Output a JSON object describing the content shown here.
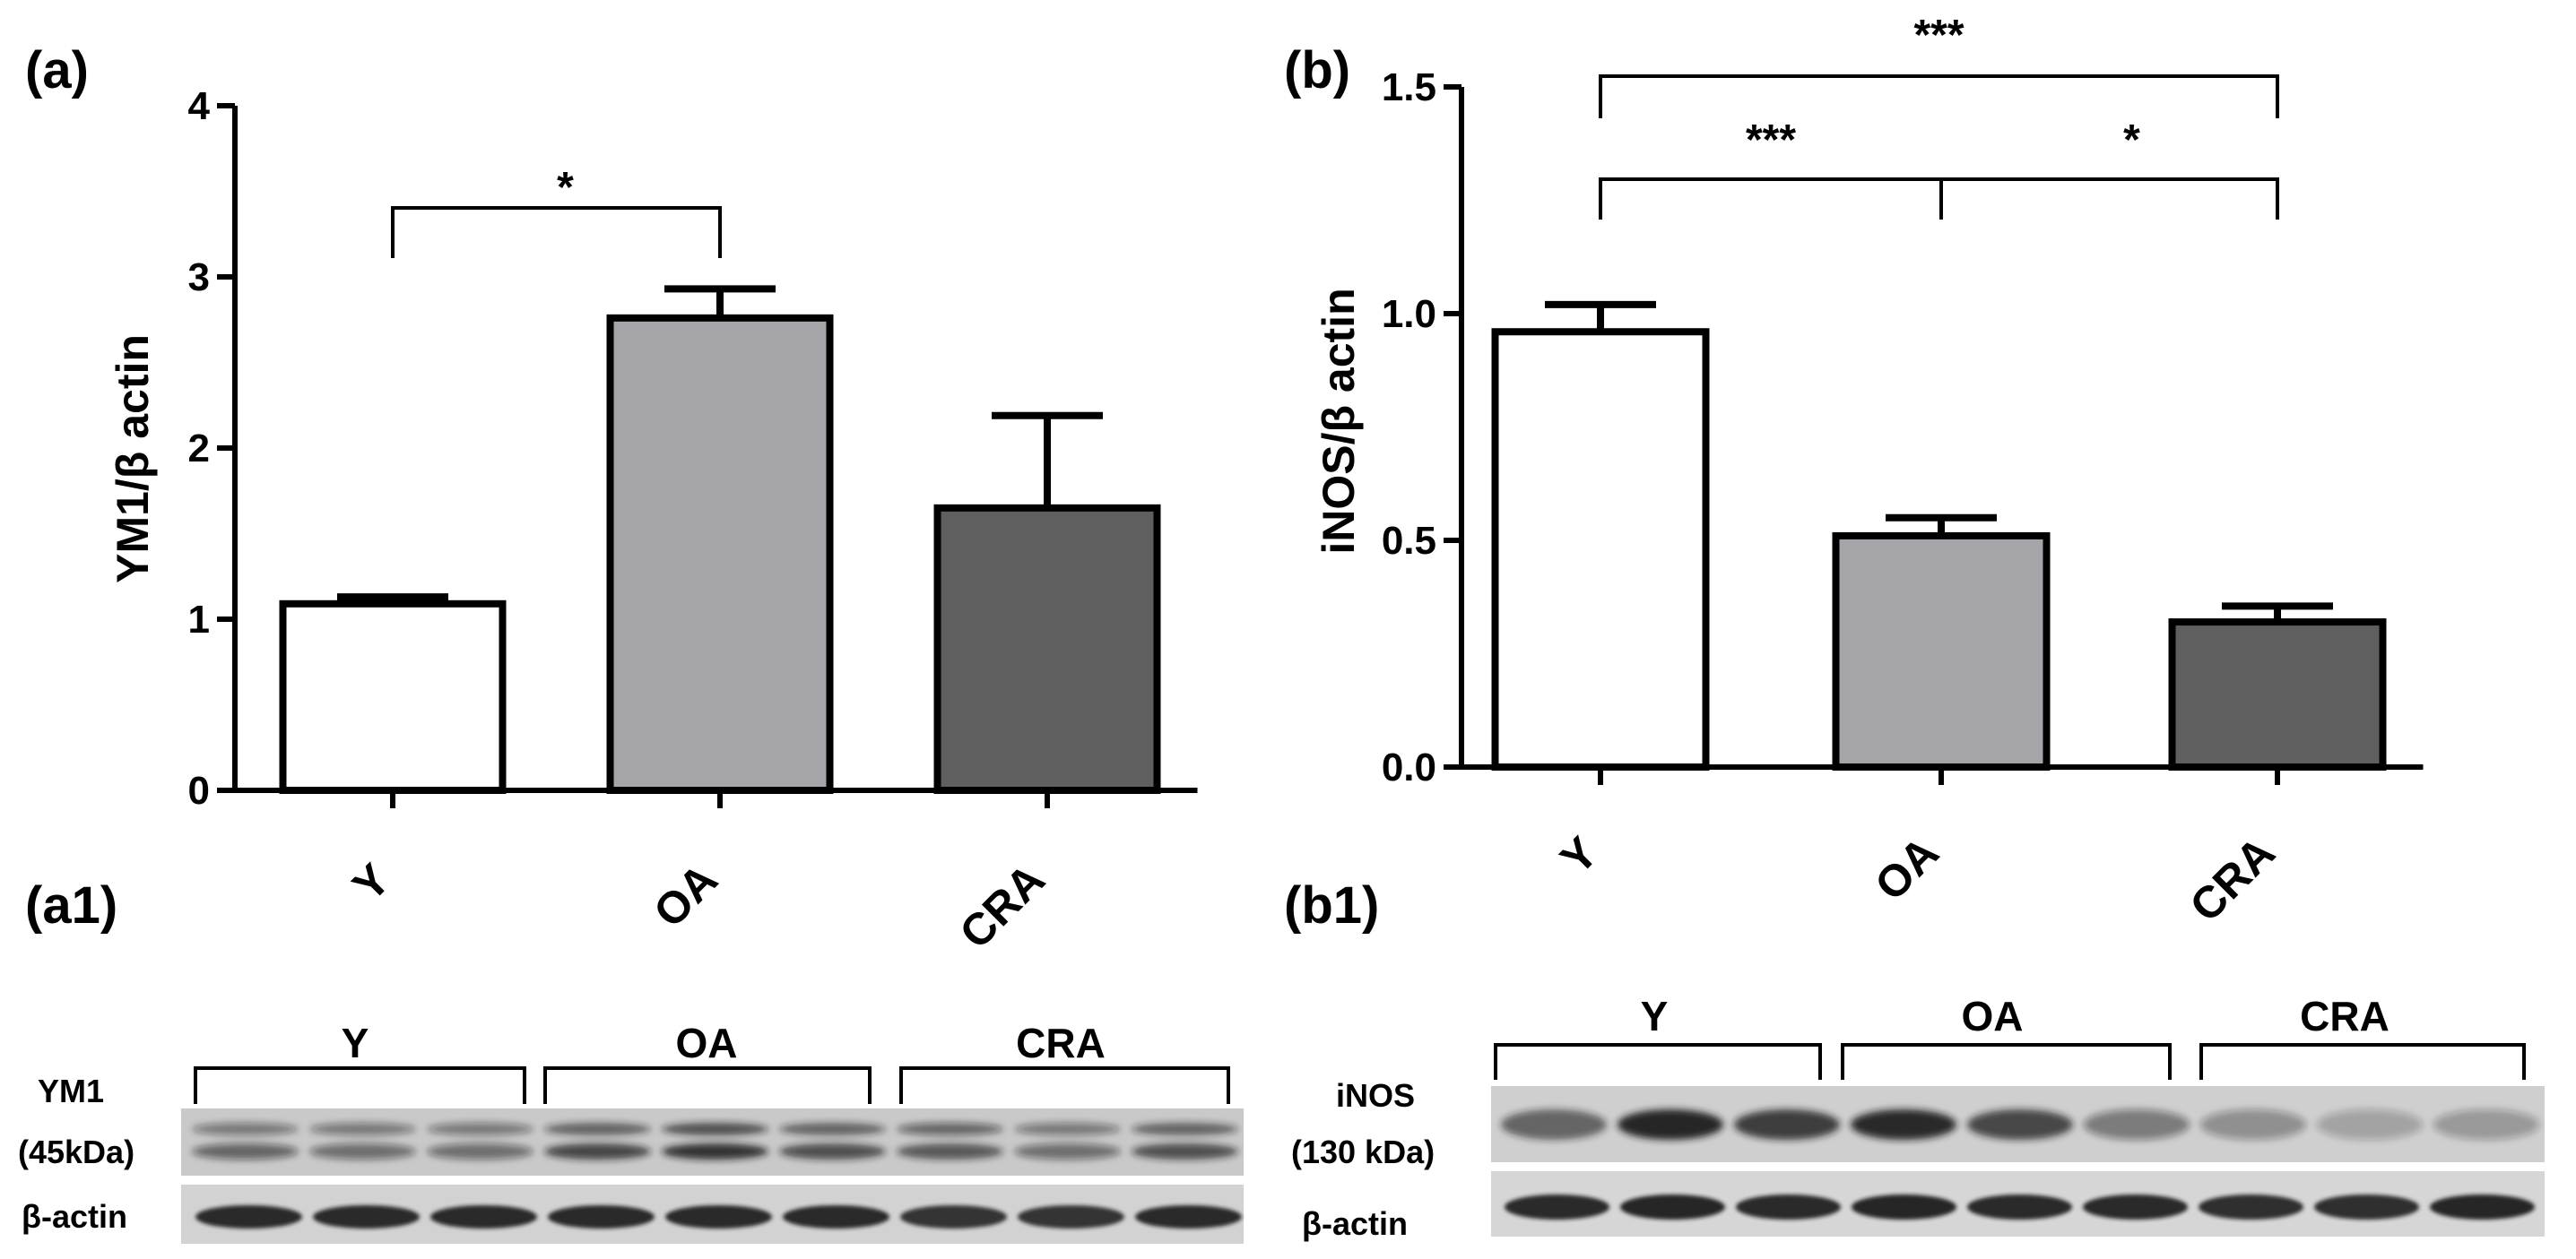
{
  "chart_data": [
    {
      "panel": "(a)",
      "type": "bar",
      "ylabel": "YM1/β actin",
      "ylim": [
        0,
        4
      ],
      "yticks": [
        "0",
        "1",
        "2",
        "3",
        "4"
      ],
      "categories": [
        "Y",
        "OA",
        "CRA"
      ],
      "values": [
        1.09,
        2.76,
        1.65
      ],
      "errors": [
        0.04,
        0.17,
        0.54
      ],
      "colors": [
        "#ffffff",
        "#a4a4a9",
        "#5f5f5f"
      ],
      "significance": [
        {
          "from": 0,
          "to": 1,
          "label": "*"
        }
      ]
    },
    {
      "panel": "(b)",
      "type": "bar",
      "ylabel": "iNOS/β actin",
      "ylim": [
        0,
        1.5
      ],
      "yticks": [
        "0.0",
        "0.5",
        "1.0",
        "1.5"
      ],
      "categories": [
        "Y",
        "OA",
        "CRA"
      ],
      "values": [
        0.96,
        0.51,
        0.32
      ],
      "errors": [
        0.06,
        0.04,
        0.035
      ],
      "colors": [
        "#ffffff",
        "#a4a4a9",
        "#5f5f5f"
      ],
      "significance": [
        {
          "from": 0,
          "to": 2,
          "label": "***"
        },
        {
          "from": 0,
          "to": 1,
          "label": "***"
        },
        {
          "from": 1,
          "to": 2,
          "label": "*"
        }
      ]
    }
  ],
  "blots": [
    {
      "panel": "(a1)",
      "groups": [
        "Y",
        "OA",
        "CRA"
      ],
      "protein_label": [
        "YM1",
        "(45kDa)"
      ],
      "loading_label": "β-actin"
    },
    {
      "panel": "(b1)",
      "groups": [
        "Y",
        "OA",
        "CRA"
      ],
      "protein_label": [
        "iNOS",
        "(130 kDa)"
      ],
      "loading_label": "β-actin"
    }
  ]
}
